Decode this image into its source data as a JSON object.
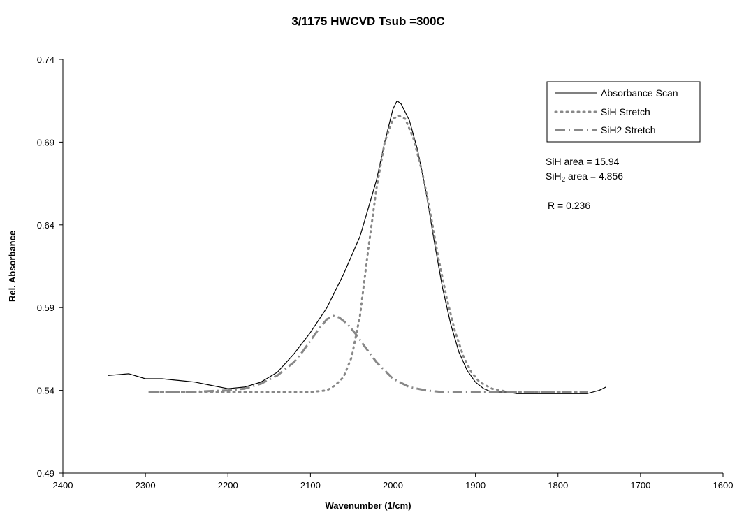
{
  "chart_data": {
    "type": "line",
    "title": "3/1175 HWCVD Tsub =300C",
    "xlabel": "Wavenumber (1/cm)",
    "ylabel": "Rel. Absorbance",
    "xlim": [
      2400,
      1600
    ],
    "x_reversed": true,
    "ylim": [
      0.49,
      0.74
    ],
    "xticks": [
      "2400",
      "2300",
      "2200",
      "2100",
      "2000",
      "1900",
      "1800",
      "1700",
      "1600"
    ],
    "yticks": [
      "0.74",
      "0.69",
      "0.64",
      "0.59",
      "0.54",
      "0.49"
    ],
    "grid": false,
    "legend_position": "top-right",
    "series": [
      {
        "name": "Absorbance Scan",
        "style": "solid",
        "color": "#000000",
        "x": [
          2345,
          2320,
          2300,
          2280,
          2260,
          2240,
          2220,
          2200,
          2180,
          2160,
          2140,
          2120,
          2100,
          2080,
          2060,
          2040,
          2020,
          2010,
          2000,
          1995,
          1990,
          1980,
          1970,
          1960,
          1950,
          1940,
          1930,
          1920,
          1910,
          1900,
          1890,
          1880,
          1870,
          1860,
          1850,
          1840,
          1820,
          1800,
          1780,
          1765,
          1750,
          1742
        ],
        "y": [
          0.549,
          0.55,
          0.547,
          0.547,
          0.546,
          0.545,
          0.543,
          0.541,
          0.542,
          0.545,
          0.551,
          0.562,
          0.575,
          0.59,
          0.61,
          0.633,
          0.667,
          0.69,
          0.71,
          0.715,
          0.713,
          0.703,
          0.685,
          0.66,
          0.63,
          0.602,
          0.58,
          0.563,
          0.552,
          0.545,
          0.541,
          0.539,
          0.539,
          0.539,
          0.538,
          0.538,
          0.538,
          0.538,
          0.538,
          0.538,
          0.54,
          0.542
        ]
      },
      {
        "name": "SiH Stretch",
        "style": "dotted",
        "color": "#888888",
        "x": [
          2295,
          2250,
          2200,
          2150,
          2120,
          2100,
          2080,
          2070,
          2060,
          2050,
          2040,
          2030,
          2020,
          2010,
          2000,
          1993,
          1985,
          1975,
          1965,
          1955,
          1945,
          1935,
          1925,
          1915,
          1905,
          1895,
          1880,
          1860,
          1820,
          1780,
          1765
        ],
        "y": [
          0.539,
          0.539,
          0.539,
          0.539,
          0.539,
          0.539,
          0.54,
          0.543,
          0.548,
          0.56,
          0.585,
          0.625,
          0.662,
          0.69,
          0.704,
          0.706,
          0.704,
          0.692,
          0.673,
          0.648,
          0.62,
          0.596,
          0.576,
          0.561,
          0.551,
          0.545,
          0.541,
          0.539,
          0.539,
          0.539,
          0.539
        ]
      },
      {
        "name": "SiH2 Stretch",
        "style": "dash-dot",
        "color": "#888888",
        "x": [
          2295,
          2250,
          2200,
          2180,
          2160,
          2140,
          2120,
          2110,
          2100,
          2090,
          2080,
          2072,
          2065,
          2055,
          2045,
          2035,
          2020,
          2000,
          1980,
          1960,
          1940,
          1920,
          1880,
          1840,
          1800,
          1765
        ],
        "y": [
          0.539,
          0.539,
          0.54,
          0.541,
          0.544,
          0.549,
          0.557,
          0.563,
          0.57,
          0.577,
          0.583,
          0.585,
          0.584,
          0.58,
          0.574,
          0.567,
          0.557,
          0.547,
          0.542,
          0.54,
          0.539,
          0.539,
          0.539,
          0.539,
          0.539,
          0.539
        ]
      }
    ],
    "annotations": {
      "sih_area": "SiH area = 15.94",
      "sih2_area_prefix": "SiH",
      "sih2_area_sub": "2",
      "sih2_area_suffix": " area = 4.856",
      "r_value": "R = 0.236"
    }
  }
}
